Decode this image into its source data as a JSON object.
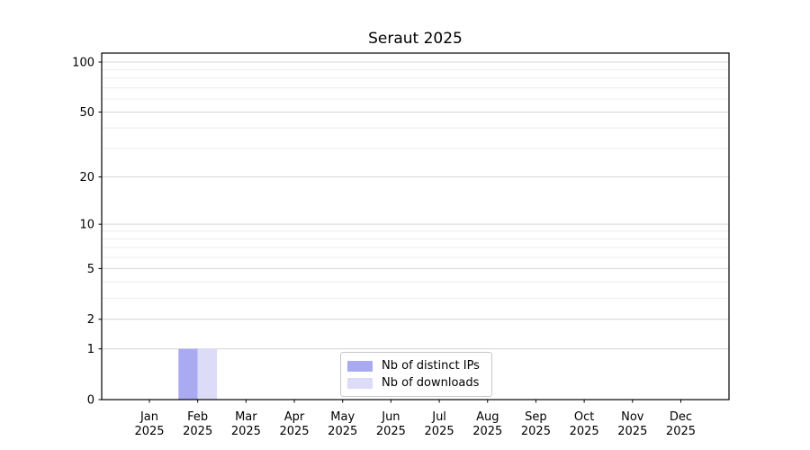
{
  "figure": {
    "background": "#ffffff"
  },
  "chart_data": {
    "type": "bar",
    "title": "Seraut 2025",
    "xlabel": "",
    "ylabel": "",
    "yscale": "log1p",
    "ylim": [
      0,
      113
    ],
    "grid": true,
    "categories": [
      "Jan",
      "Feb",
      "Mar",
      "Apr",
      "May",
      "Jun",
      "Jul",
      "Aug",
      "Sep",
      "Oct",
      "Nov",
      "Dec"
    ],
    "category_year": "2025",
    "yticks": [
      0,
      1,
      2,
      5,
      10,
      20,
      50,
      100
    ],
    "y_minor_gridlines": [
      3,
      4,
      6,
      7,
      8,
      9,
      30,
      40,
      60,
      70,
      80,
      90
    ],
    "series": [
      {
        "name": "Nb of distinct IPs",
        "color": "#a9aaf2",
        "values": [
          0,
          1,
          0,
          0,
          0,
          0,
          0,
          0,
          0,
          0,
          0,
          0
        ]
      },
      {
        "name": "Nb of downloads",
        "color": "#dcdcf9",
        "values": [
          0,
          1,
          0,
          0,
          0,
          0,
          0,
          0,
          0,
          0,
          0,
          0
        ]
      }
    ],
    "legend": {
      "position": "lower center",
      "entries": [
        "Nb of distinct IPs",
        "Nb of downloads"
      ]
    }
  },
  "colors": {
    "major_grid": "#d5d5d5",
    "minor_grid": "#ececec",
    "axis": "#000000",
    "text": "#000000",
    "legend_border": "#c8c8c8"
  }
}
